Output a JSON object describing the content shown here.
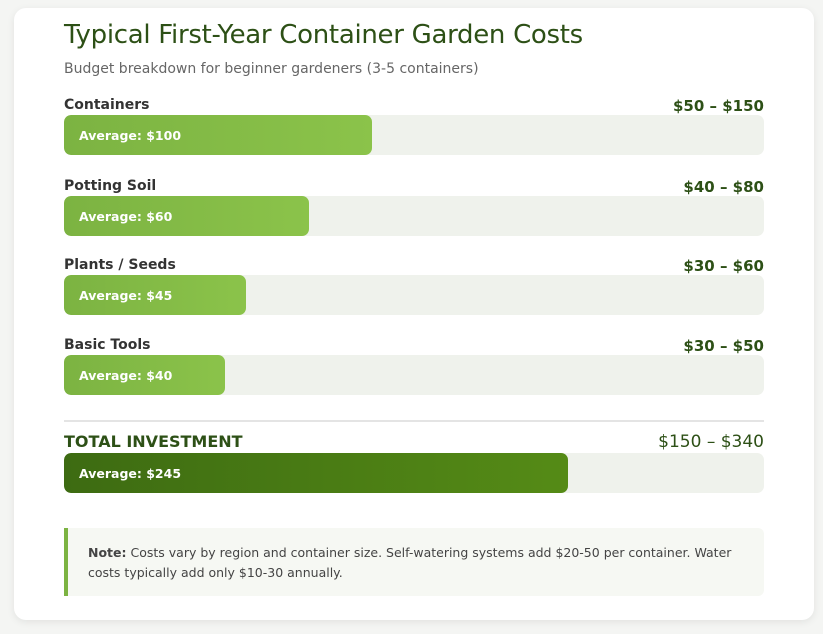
{
  "title": "Typical First-Year Container Garden Costs",
  "subtitle": "Budget breakdown for beginner gardeners (3-5 containers)",
  "chart_data": {
    "type": "bar",
    "title": "Typical First-Year Container Garden Costs",
    "categories": [
      "Containers",
      "Potting Soil",
      "Plants / Seeds",
      "Basic Tools"
    ],
    "items": [
      {
        "label": "Containers",
        "range": "$50 – $150",
        "avg_label": "Average: $100",
        "average": 100,
        "fill_percent": 44
      },
      {
        "label": "Potting Soil",
        "range": "$40 – $80",
        "avg_label": "Average: $60",
        "average": 60,
        "fill_percent": 35
      },
      {
        "label": "Plants / Seeds",
        "range": "$30 – $60",
        "avg_label": "Average: $45",
        "average": 45,
        "fill_percent": 26
      },
      {
        "label": "Basic Tools",
        "range": "$30 – $50",
        "avg_label": "Average: $40",
        "average": 40,
        "fill_percent": 23
      }
    ],
    "total": {
      "label": "TOTAL INVESTMENT",
      "range": "$150 – $340",
      "avg_label": "Average: $245",
      "average": 245,
      "fill_percent": 72
    },
    "colors": {
      "bar": "#8bc34a",
      "total_bar": "#4a7c14",
      "track": "#eff2ec",
      "heading": "#2d5016"
    }
  },
  "note": {
    "bold": "Note:",
    "text": " Costs vary by region and container size. Self-watering systems add $20-50 per container. Water costs typically add only $10-30 annually."
  }
}
